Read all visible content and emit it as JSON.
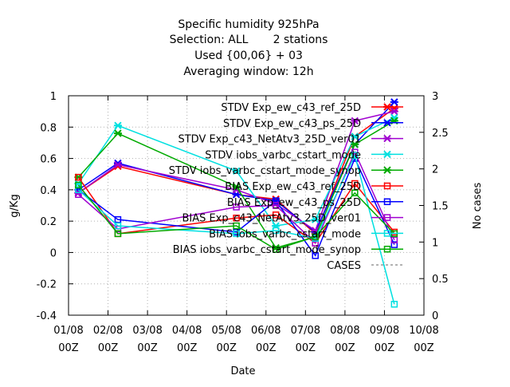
{
  "chart_data": {
    "type": "line",
    "title_lines": [
      "Specific humidity 925hPa",
      "Selection: ALL       2 stations",
      "Used {00,06} + 03",
      "Averaging window: 12h"
    ],
    "xlabel": "Date",
    "ylabel": "g/Kg",
    "y2label": "No cases",
    "x_ticks": [
      "01/08 00Z",
      "02/08 00Z",
      "03/08 00Z",
      "04/08 00Z",
      "05/08 00Z",
      "06/08 00Z",
      "07/08 00Z",
      "08/08 00Z",
      "09/08 00Z",
      "10/08 00Z"
    ],
    "y_ticks": [
      "-0.4",
      "-0.2",
      "0",
      "0.2",
      "0.4",
      "0.6",
      "0.8",
      "1"
    ],
    "y2_ticks": [
      "0",
      "0.5",
      "1",
      "1.5",
      "2",
      "2.5",
      "3"
    ],
    "xlim": [
      0,
      9
    ],
    "ylim": [
      -0.4,
      1
    ],
    "y2lim": [
      0,
      3
    ],
    "grid": true,
    "legend_position": "top-right",
    "series": [
      {
        "name": "STDV Exp_ew_c43_ref_25D",
        "color": "#ff0000",
        "marker": "x",
        "x": [
          0.25,
          1.25,
          4.25,
          5.25,
          6.25,
          7.25,
          8.25
        ],
        "y": [
          0.38,
          0.55,
          0.37,
          0.34,
          0.12,
          0.74,
          0.92
        ]
      },
      {
        "name": "STDV Exp_ew_c43_ps_25D",
        "color": "#0000ff",
        "marker": "x",
        "x": [
          0.25,
          1.25,
          4.25,
          5.25,
          6.25,
          7.25,
          8.25
        ],
        "y": [
          0.4,
          0.57,
          0.37,
          0.33,
          0.13,
          0.69,
          0.96
        ]
      },
      {
        "name": "STDV Exp_c43_NetAtv3_25D_ver01",
        "color": "#a000d0",
        "marker": "x",
        "x": [
          0.25,
          1.25,
          4.25,
          5.25,
          6.25,
          7.25,
          8.25
        ],
        "y": [
          0.38,
          0.56,
          0.4,
          0.31,
          0.14,
          0.84,
          0.9
        ]
      },
      {
        "name": "STDV iobs_varbc_cstart_mode",
        "color": "#00e0e0",
        "marker": "x",
        "x": [
          0.25,
          1.25,
          4.25,
          5.25,
          6.25,
          7.25,
          8.25
        ],
        "y": [
          0.44,
          0.81,
          0.52,
          0.17,
          0.21,
          0.74,
          0.86
        ]
      },
      {
        "name": "STDV iobs_varbc_cstart_mode_synop",
        "color": "#00aa00",
        "marker": "x",
        "x": [
          0.25,
          1.25,
          4.25,
          5.25,
          6.25,
          7.25,
          8.25
        ],
        "y": [
          0.48,
          0.76,
          0.42,
          0.03,
          0.1,
          0.69,
          0.84
        ]
      },
      {
        "name": "BIAS Exp_ew_c43_ref_25D",
        "color": "#ff0000",
        "marker": "square",
        "x": [
          0.25,
          1.25,
          4.25,
          5.25,
          6.25,
          7.25,
          8.25
        ],
        "y": [
          0.48,
          0.12,
          0.22,
          0.24,
          0.06,
          0.44,
          0.13
        ]
      },
      {
        "name": "BIAS Exp_ew_c43_ps_25D",
        "color": "#0000ff",
        "marker": "square",
        "x": [
          0.25,
          1.25,
          4.25,
          5.25,
          6.25,
          7.25,
          8.25
        ],
        "y": [
          0.4,
          0.21,
          0.13,
          0.33,
          -0.02,
          0.6,
          0.05
        ]
      },
      {
        "name": "BIAS Exp_c43_NetAtv3_25D_ver01",
        "color": "#a000d0",
        "marker": "square",
        "x": [
          0.25,
          1.25,
          4.25,
          5.25,
          6.25,
          7.25,
          8.25
        ],
        "y": [
          0.37,
          0.15,
          0.29,
          0.3,
          0.06,
          0.64,
          0.08
        ]
      },
      {
        "name": "BIAS iobs_varbc_cstart_mode",
        "color": "#00e0e0",
        "marker": "square",
        "x": [
          0.25,
          1.25,
          4.25,
          5.25,
          6.25,
          7.25,
          8.25
        ],
        "y": [
          0.4,
          0.17,
          0.12,
          0.14,
          0.09,
          0.62,
          -0.33
        ]
      },
      {
        "name": "BIAS iobs_varbc_cstart_mode_synop",
        "color": "#00aa00",
        "marker": "square",
        "x": [
          0.25,
          1.25,
          4.25,
          5.25,
          6.25,
          7.25,
          8.25
        ],
        "y": [
          0.43,
          0.12,
          0.17,
          0.02,
          0.1,
          0.38,
          0.12
        ]
      },
      {
        "name": "CASES",
        "color": "#999999",
        "marker": "none",
        "axis": "y2",
        "x": [
          0.25,
          1.25,
          4.25,
          5.25,
          6.25,
          7.25,
          8.25
        ],
        "y": [
          2,
          2,
          2,
          2,
          2,
          2,
          2
        ]
      }
    ]
  }
}
